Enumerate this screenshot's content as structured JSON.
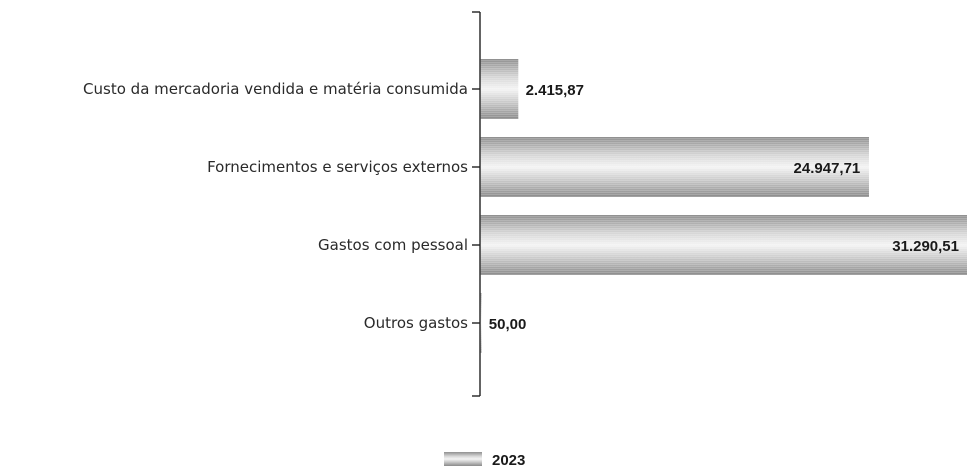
{
  "chart_data": {
    "type": "bar",
    "orientation": "horizontal",
    "categories": [
      "Custo da mercadoria vendida e matéria consumida",
      "Fornecimentos e serviços externos",
      "Gastos com pessoal",
      "Outros gastos"
    ],
    "series": [
      {
        "name": "2023",
        "values": [
          2415.87,
          24947.71,
          31290.51,
          50.0
        ],
        "value_labels": [
          "2.415,87",
          "24.947,71",
          "31.290,51",
          "50,00"
        ]
      }
    ],
    "legend": {
      "position": "bottom-center",
      "labels": [
        "2023"
      ]
    },
    "bar_color": "#b8b8b8",
    "grid": false
  }
}
